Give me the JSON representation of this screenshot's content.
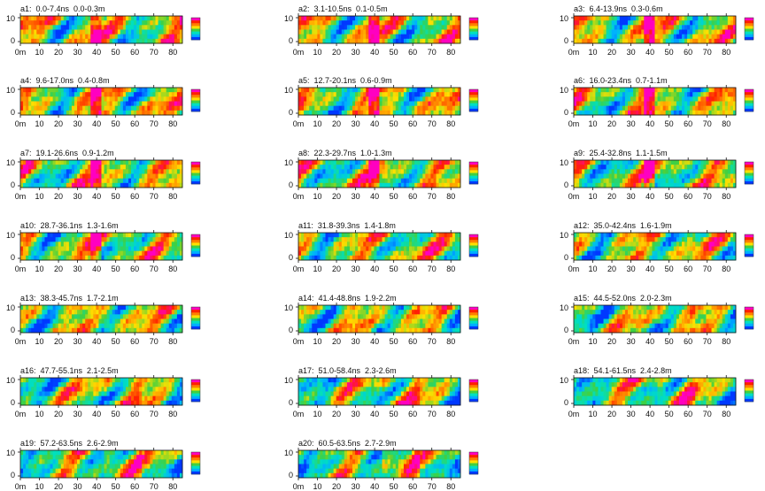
{
  "figure": {
    "x_tick_labels": [
      "0m",
      "10",
      "20",
      "30",
      "40",
      "50",
      "60",
      "70",
      "80"
    ],
    "y_tick_labels": [
      "10",
      "0"
    ]
  },
  "chart_data": {
    "type": "heatmap",
    "x_range": [
      0,
      85
    ],
    "y_range": [
      0,
      10
    ],
    "xticks": [
      0,
      10,
      20,
      30,
      40,
      50,
      60,
      70,
      80
    ],
    "yticks": [
      0,
      10
    ],
    "colorscale": [
      "#0038ff",
      "#00b0ff",
      "#00e0c0",
      "#40d040",
      "#ffe000",
      "#ff8000",
      "#ff2000",
      "#ff00c0"
    ],
    "panels": [
      {
        "id": "a1",
        "label": "a1:  0.0-7.4ns  0.0-0.3m"
      },
      {
        "id": "a2",
        "label": "a2:  3.1-10.5ns  0.1-0.5m"
      },
      {
        "id": "a3",
        "label": "a3:  6.4-13.9ns  0.3-0.6m"
      },
      {
        "id": "a4",
        "label": "a4:  9.6-17.0ns  0.4-0.8m"
      },
      {
        "id": "a5",
        "label": "a5:  12.7-20.1ns  0.6-0.9m"
      },
      {
        "id": "a6",
        "label": "a6:  16.0-23.4ns  0.7-1.1m"
      },
      {
        "id": "a7",
        "label": "a7:  19.1-26.6ns  0.9-1.2m"
      },
      {
        "id": "a8",
        "label": "a8:  22.3-29.7ns  1.0-1.3m"
      },
      {
        "id": "a9",
        "label": "a9:  25.4-32.8ns  1.1-1.5m"
      },
      {
        "id": "a10",
        "label": "a10:  28.7-36.1ns  1.3-1.6m"
      },
      {
        "id": "a11",
        "label": "a11:  31.8-39.3ns  1.4-1.8m"
      },
      {
        "id": "a12",
        "label": "a12:  35.0-42.4ns  1.6-1.9m"
      },
      {
        "id": "a13",
        "label": "a13:  38.3-45.7ns  1.7-2.1m"
      },
      {
        "id": "a14",
        "label": "a14:  41.4-48.8ns  1.9-2.2m"
      },
      {
        "id": "a15",
        "label": "a15:  44.5-52.0ns  2.0-2.3m"
      },
      {
        "id": "a16",
        "label": "a16:  47.7-55.1ns  2.1-2.5m"
      },
      {
        "id": "a17",
        "label": "a17:  51.0-58.4ns  2.3-2.6m"
      },
      {
        "id": "a18",
        "label": "a18:  54.1-61.5ns  2.4-2.8m"
      },
      {
        "id": "a19",
        "label": "a19:  57.2-63.5ns  2.6-2.9m"
      },
      {
        "id": "a20",
        "label": "a20:  60.5-63.5ns  2.7-2.9m"
      }
    ]
  }
}
